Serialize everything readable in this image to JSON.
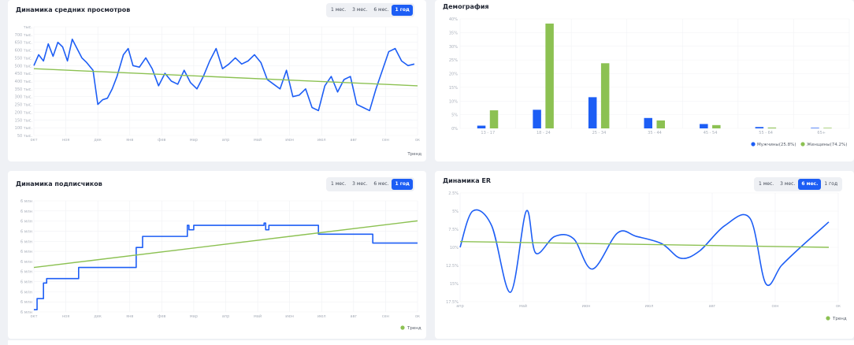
{
  "periods": [
    "1 мес.",
    "3 мес.",
    "6 мес.",
    "1 год"
  ],
  "charts": {
    "views": {
      "title": "Динамика средних просмотров",
      "active_period": "1 год",
      "legend": "Тренд",
      "colors": {
        "line": "#1d5ef5",
        "trend": "#8cc152"
      },
      "chart_data": {
        "type": "line",
        "title": "Динамика средних просмотров",
        "x_labels": [
          "окт",
          "ноя",
          "дек",
          "янв",
          "фев",
          "мар",
          "апр",
          "май",
          "июн",
          "июл",
          "авг",
          "сен",
          "ок"
        ],
        "y_labels": [
          "тыс.",
          "700 тыс.",
          "650 тыс.",
          "600 тыс.",
          "550 тыс.",
          "500 тыс.",
          "450 тыс.",
          "400 тыс.",
          "350 тыс.",
          "300 тыс.",
          "250 тыс.",
          "200 тыс.",
          "150 тыс.",
          "100 тыс.",
          "50 тыс."
        ],
        "ylim": [
          0,
          700
        ],
        "xlim": [
          0,
          12
        ],
        "series": [
          {
            "kind": "line",
            "x": [
              0,
              0.15,
              0.3,
              0.45,
              0.6,
              0.75,
              0.9,
              1.05,
              1.2,
              1.35,
              1.5,
              1.65,
              1.85,
              2.0,
              2.15,
              2.3,
              2.45,
              2.6,
              2.8,
              2.95,
              3.1,
              3.3,
              3.5,
              3.7,
              3.9,
              4.1,
              4.3,
              4.5,
              4.7,
              4.9,
              5.1,
              5.3,
              5.5,
              5.7,
              5.9,
              6.1,
              6.3,
              6.5,
              6.7,
              6.9,
              7.1,
              7.3,
              7.5,
              7.7,
              7.9,
              8.1,
              8.3,
              8.5,
              8.7,
              8.9,
              9.1,
              9.3,
              9.5,
              9.7,
              9.9,
              10.1,
              10.3,
              10.5,
              10.7,
              10.9,
              11.1,
              11.3,
              11.5,
              11.7,
              11.9
            ],
            "y": [
              450,
              520,
              480,
              590,
              510,
              600,
              570,
              480,
              620,
              560,
              500,
              470,
              420,
              200,
              230,
              240,
              300,
              380,
              520,
              560,
              450,
              440,
              500,
              430,
              320,
              400,
              350,
              330,
              420,
              340,
              300,
              380,
              480,
              560,
              430,
              460,
              500,
              460,
              480,
              520,
              470,
              360,
              330,
              300,
              420,
              250,
              260,
              300,
              180,
              160,
              320,
              380,
              280,
              360,
              380,
              200,
              180,
              160,
              300,
              420,
              540,
              560,
              480,
              450,
              460
            ]
          },
          {
            "kind": "trend",
            "x": [
              0,
              12
            ],
            "y": [
              430,
              320
            ]
          }
        ]
      }
    },
    "demography": {
      "title": "Демография",
      "colors": {
        "male": "#1d5ef5",
        "female": "#8cc152"
      },
      "chart_data": {
        "type": "bar",
        "title": "Демография",
        "categories": [
          "13 - 17",
          "18 - 24",
          "25 - 34",
          "35 - 44",
          "45 - 54",
          "55 - 64",
          "65+"
        ],
        "y_labels": [
          "0%",
          "5%",
          "10%",
          "15%",
          "20%",
          "25%",
          "30%",
          "35%",
          "40%"
        ],
        "ylim": [
          0,
          40
        ],
        "series": [
          {
            "name": "Мужчины(25.8%)",
            "values": [
              1.0,
              6.8,
              11.4,
              3.8,
              1.6,
              0.5,
              0.2
            ]
          },
          {
            "name": "Женщины(74.2%)",
            "values": [
              6.6,
              38.3,
              23.8,
              2.9,
              1.2,
              0.3,
              0.2
            ]
          }
        ]
      }
    },
    "subs": {
      "title": "Динамика подписчиков",
      "active_period": "1 год",
      "legend": "Тренд",
      "colors": {
        "line": "#1d5ef5",
        "trend": "#8cc152"
      },
      "chart_data": {
        "type": "line",
        "title": "Динамика подписчиков",
        "x_labels": [
          "окт",
          "ноя",
          "дек",
          "янв",
          "фев",
          "мар",
          "апр",
          "май",
          "июн",
          "июл",
          "авг",
          "сен",
          "ок"
        ],
        "y_labels": [
          "6 млн",
          "6 млн",
          "6 млн",
          "6 млн",
          "6 млн",
          "6 млн",
          "6 млн",
          "6 млн",
          "6 млн",
          "6 млн",
          "6 млн",
          "6 млн"
        ],
        "ylim": [
          0,
          100
        ],
        "xlim": [
          0,
          12
        ],
        "series": [
          {
            "kind": "step",
            "x": [
              0,
              0.1,
              0.3,
              0.4,
              1.4,
              3.2,
              3.4,
              4.8,
              4.85,
              5.0,
              7.2,
              7.25,
              7.35,
              8.9,
              10.6,
              12
            ],
            "y": [
              2,
              12,
              26,
              30,
              40,
              58,
              68,
              78,
              74,
              78,
              80,
              74,
              78,
              70,
              62,
              62
            ]
          },
          {
            "kind": "trend",
            "x": [
              0,
              12
            ],
            "y": [
              40,
              82
            ]
          }
        ]
      }
    },
    "er": {
      "title": "Динамика ER",
      "active_period": "6 мес.",
      "legend": "Тренд",
      "colors": {
        "line": "#1d5ef5",
        "trend": "#8cc152"
      },
      "chart_data": {
        "type": "line",
        "title": "Динамика ER",
        "x_labels": [
          "апр",
          "май",
          "июн",
          "июл",
          "авг",
          "сен",
          "ок"
        ],
        "y_labels": [
          "2.5%",
          "5%",
          "7.5%",
          "10%",
          "12.5%",
          "15%",
          "17.5%"
        ],
        "ylim": [
          2.5,
          17.5
        ],
        "xlim": [
          0,
          6
        ],
        "series": [
          {
            "kind": "smooth",
            "x": [
              0,
              0.2,
              0.5,
              0.8,
              1.05,
              1.2,
              1.5,
              1.8,
              2.1,
              2.5,
              2.8,
              3.2,
              3.5,
              3.8,
              4.2,
              4.6,
              4.85,
              5.1,
              5.4,
              5.85
            ],
            "y": [
              10,
              15,
              13,
              3.8,
              15,
              9.2,
              11.5,
              11.2,
              7,
              12,
              11.5,
              10.5,
              8.5,
              9.5,
              13,
              14,
              5,
              7.5,
              10,
              13.5
            ]
          },
          {
            "kind": "trend",
            "x": [
              0,
              5.85
            ],
            "y": [
              10.8,
              10.0
            ]
          }
        ]
      }
    }
  }
}
